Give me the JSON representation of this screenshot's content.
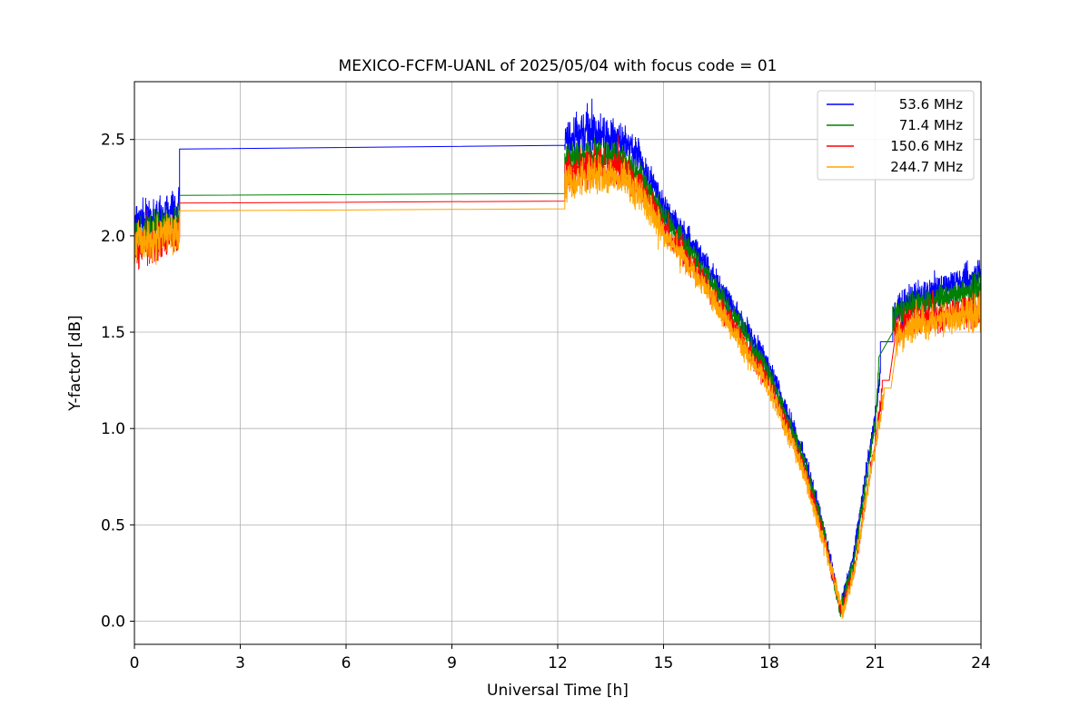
{
  "chart_data": {
    "type": "line",
    "title": "MEXICO-FCFM-UANL of 2025/05/04 with focus code = 01",
    "xlabel": "Universal Time [h]",
    "ylabel": "Y-factor [dB]",
    "xlim": [
      0,
      24
    ],
    "ylim": [
      -0.12,
      2.8
    ],
    "xticks": [
      0,
      3,
      6,
      9,
      12,
      15,
      18,
      21,
      24
    ],
    "yticks": [
      0.0,
      0.5,
      1.0,
      1.5,
      2.0,
      2.5
    ],
    "grid": true,
    "legend_position": "upper right",
    "style": {
      "grid_color": "#b0b0b0",
      "axis_color": "#000000",
      "background": "#ffffff",
      "legend_border": "#cccccc",
      "line_width": 1.0
    },
    "series": [
      {
        "name": "53.6 MHz",
        "color": "#0000ff",
        "segments": [
          {
            "kind": "noisy",
            "points": [
              [
                0,
                2.05,
                0.1
              ],
              [
                1.28,
                2.13,
                0.09
              ]
            ]
          },
          {
            "kind": "line",
            "points": [
              [
                1.28,
                2.45
              ],
              [
                12.2,
                2.47
              ]
            ]
          },
          {
            "kind": "noisy",
            "points": [
              [
                12.2,
                2.5,
                0.09
              ],
              [
                13.0,
                2.53,
                0.09
              ],
              [
                13.8,
                2.5,
                0.08
              ],
              [
                14.3,
                2.42,
                0.07
              ],
              [
                15.0,
                2.15,
                0.06
              ],
              [
                16.0,
                1.9,
                0.06
              ],
              [
                17.0,
                1.62,
                0.05
              ],
              [
                18.0,
                1.32,
                0.05
              ],
              [
                19.0,
                0.85,
                0.04
              ],
              [
                19.5,
                0.52,
                0.04
              ],
              [
                20.0,
                0.07,
                0.03
              ],
              [
                20.4,
                0.35,
                0.035
              ],
              [
                20.7,
                0.72,
                0.04
              ],
              [
                21.0,
                1.06,
                0.04
              ],
              [
                21.15,
                1.3,
                0.04
              ]
            ]
          },
          {
            "kind": "line",
            "points": [
              [
                21.15,
                1.45
              ],
              [
                21.5,
                1.45
              ]
            ]
          },
          {
            "kind": "noisy",
            "points": [
              [
                21.5,
                1.6,
                0.07
              ],
              [
                22.0,
                1.67,
                0.07
              ],
              [
                23.0,
                1.73,
                0.07
              ],
              [
                24.0,
                1.8,
                0.08
              ]
            ]
          }
        ]
      },
      {
        "name": "71.4 MHz",
        "color": "#008000",
        "segments": [
          {
            "kind": "noisy",
            "points": [
              [
                0,
                2.0,
                0.08
              ],
              [
                1.28,
                2.08,
                0.07
              ]
            ]
          },
          {
            "kind": "line",
            "points": [
              [
                1.28,
                2.21
              ],
              [
                12.2,
                2.22
              ]
            ]
          },
          {
            "kind": "noisy",
            "points": [
              [
                12.2,
                2.38,
                0.07
              ],
              [
                13.0,
                2.42,
                0.07
              ],
              [
                13.8,
                2.4,
                0.07
              ],
              [
                14.3,
                2.32,
                0.06
              ],
              [
                15.0,
                2.1,
                0.06
              ],
              [
                16.0,
                1.86,
                0.05
              ],
              [
                17.0,
                1.58,
                0.05
              ],
              [
                18.0,
                1.28,
                0.045
              ],
              [
                19.0,
                0.82,
                0.04
              ],
              [
                19.5,
                0.5,
                0.035
              ],
              [
                20.0,
                0.05,
                0.03
              ],
              [
                20.4,
                0.32,
                0.03
              ],
              [
                20.7,
                0.68,
                0.035
              ],
              [
                21.0,
                1.02,
                0.04
              ],
              [
                21.1,
                1.32,
                0.04
              ]
            ]
          },
          {
            "kind": "line",
            "points": [
              [
                21.1,
                1.37
              ],
              [
                21.5,
                1.5
              ]
            ]
          },
          {
            "kind": "noisy",
            "points": [
              [
                21.5,
                1.57,
                0.06
              ],
              [
                22.0,
                1.63,
                0.06
              ],
              [
                23.0,
                1.68,
                0.06
              ],
              [
                24.0,
                1.73,
                0.07
              ]
            ]
          }
        ]
      },
      {
        "name": "150.6 MHz",
        "color": "#ff0000",
        "segments": [
          {
            "kind": "noisy",
            "points": [
              [
                0,
                1.93,
                0.09
              ],
              [
                1.28,
                2.02,
                0.08
              ]
            ]
          },
          {
            "kind": "line",
            "points": [
              [
                1.28,
                2.17
              ],
              [
                12.2,
                2.18
              ]
            ]
          },
          {
            "kind": "noisy",
            "points": [
              [
                12.2,
                2.32,
                0.08
              ],
              [
                13.0,
                2.36,
                0.08
              ],
              [
                13.8,
                2.34,
                0.07
              ],
              [
                14.3,
                2.26,
                0.06
              ],
              [
                15.0,
                2.05,
                0.06
              ],
              [
                16.0,
                1.8,
                0.055
              ],
              [
                17.0,
                1.52,
                0.05
              ],
              [
                18.0,
                1.23,
                0.045
              ],
              [
                19.0,
                0.78,
                0.04
              ],
              [
                19.5,
                0.46,
                0.035
              ],
              [
                20.05,
                0.05,
                0.03
              ],
              [
                20.45,
                0.3,
                0.03
              ],
              [
                20.75,
                0.66,
                0.035
              ],
              [
                21.05,
                0.98,
                0.04
              ],
              [
                21.2,
                1.2,
                0.04
              ]
            ]
          },
          {
            "kind": "line",
            "points": [
              [
                21.2,
                1.25
              ],
              [
                21.4,
                1.25
              ],
              [
                21.55,
                1.45
              ]
            ]
          },
          {
            "kind": "noisy",
            "points": [
              [
                21.55,
                1.5,
                0.07
              ],
              [
                22.0,
                1.56,
                0.07
              ],
              [
                23.0,
                1.6,
                0.07
              ],
              [
                24.0,
                1.62,
                0.08
              ]
            ]
          }
        ]
      },
      {
        "name": "244.7 MHz",
        "color": "#ffa500",
        "segments": [
          {
            "kind": "noisy",
            "points": [
              [
                0,
                1.95,
                0.1
              ],
              [
                1.28,
                2.03,
                0.09
              ]
            ]
          },
          {
            "kind": "line",
            "points": [
              [
                1.28,
                2.13
              ],
              [
                12.2,
                2.14
              ]
            ]
          },
          {
            "kind": "noisy",
            "points": [
              [
                12.2,
                2.27,
                0.08
              ],
              [
                13.0,
                2.32,
                0.08
              ],
              [
                13.8,
                2.3,
                0.08
              ],
              [
                14.3,
                2.22,
                0.07
              ],
              [
                15.0,
                2.02,
                0.06
              ],
              [
                16.0,
                1.78,
                0.055
              ],
              [
                17.0,
                1.5,
                0.05
              ],
              [
                18.0,
                1.21,
                0.045
              ],
              [
                19.0,
                0.76,
                0.04
              ],
              [
                19.5,
                0.44,
                0.035
              ],
              [
                20.1,
                0.04,
                0.035
              ],
              [
                20.45,
                0.3,
                0.03
              ],
              [
                20.75,
                0.64,
                0.035
              ],
              [
                21.05,
                0.96,
                0.04
              ],
              [
                21.25,
                1.18,
                0.04
              ]
            ]
          },
          {
            "kind": "line",
            "points": [
              [
                21.25,
                1.21
              ],
              [
                21.45,
                1.21
              ],
              [
                21.6,
                1.42
              ]
            ]
          },
          {
            "kind": "noisy",
            "points": [
              [
                21.6,
                1.47,
                0.07
              ],
              [
                22.0,
                1.52,
                0.07
              ],
              [
                23.0,
                1.57,
                0.07
              ],
              [
                24.0,
                1.6,
                0.08
              ]
            ]
          }
        ]
      }
    ]
  }
}
